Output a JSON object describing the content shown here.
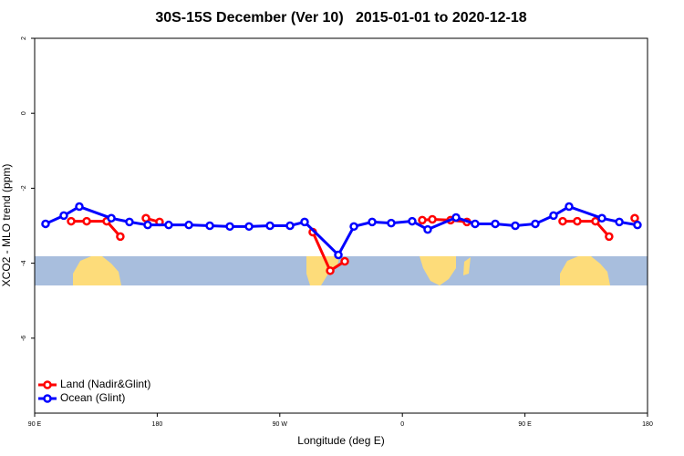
{
  "chart_data": {
    "type": "line",
    "title": "30S-15S December (Ver 10)   2015-01-01 to 2020-12-18",
    "x_label": "Longitude (deg E)",
    "y_label": "XCO2 - MLO trend (ppm)",
    "xlim": [
      90,
      540
    ],
    "xticks": [
      {
        "value": 90,
        "label": "90 E"
      },
      180,
      {
        "value": 270,
        "label": "90 W"
      },
      {
        "value": 360,
        "label": "0"
      },
      {
        "value": 450,
        "label": "90 E"
      },
      {
        "value": 540,
        "label": "180"
      }
    ],
    "ylim": [
      -8,
      2
    ],
    "yticks": [
      2,
      0,
      -2,
      -4,
      -6
    ],
    "legend": "bottom-left",
    "series": [
      {
        "name": "Land (Nadir&Glint)",
        "color": "#ff0000",
        "x": [
          116.8,
          128.2,
          142.9,
          152.9,
          null,
          171.7,
          181.7,
          null,
          294.2,
          307,
          317.7,
          null,
          374.6,
          382,
          395.4,
          407.4,
          null,
          477.7,
          488.4,
          501.8,
          511.8,
          null,
          530.6
        ],
        "values": [
          -2.88,
          -2.88,
          -2.88,
          -3.29,
          null,
          -2.8,
          -2.9,
          null,
          -3.17,
          -4.2,
          -3.95,
          null,
          -2.85,
          -2.83,
          -2.85,
          -2.9,
          null,
          -2.88,
          -2.88,
          -2.88,
          -3.29,
          null,
          -2.8
        ]
      },
      {
        "name": "Ocean (Glint)",
        "color": "#0000ff",
        "x": [
          98,
          111.4,
          122.8,
          146.3,
          159.6,
          173,
          188.4,
          203.2,
          218.6,
          233.3,
          247.4,
          262.8,
          277.5,
          288.2,
          313,
          324.4,
          337.8,
          351.8,
          367.2,
          378.6,
          399.4,
          413.4,
          428.2,
          442.9,
          457.6,
          471,
          482.4,
          506.5,
          519.3,
          532.6
        ],
        "values": [
          -2.95,
          -2.73,
          -2.49,
          -2.8,
          -2.9,
          -2.98,
          -2.98,
          -2.98,
          -3.0,
          -3.02,
          -3.02,
          -3.0,
          -3.0,
          -2.9,
          -3.78,
          -3.02,
          -2.9,
          -2.93,
          -2.88,
          -3.1,
          -2.78,
          -2.95,
          -2.95,
          -3.0,
          -2.95,
          -2.73,
          -2.49,
          -2.8,
          -2.9,
          -2.98
        ]
      }
    ]
  }
}
